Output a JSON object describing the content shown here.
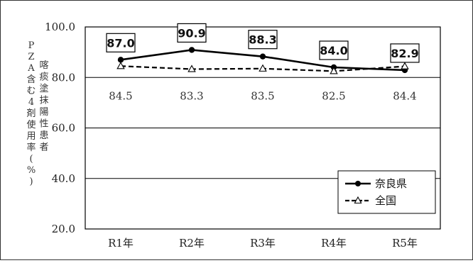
{
  "chart_data": {
    "type": "line",
    "categories": [
      "R1年",
      "R2年",
      "R3年",
      "R4年",
      "R5年"
    ],
    "series": [
      {
        "name": "奈良県",
        "values": [
          87.0,
          90.9,
          88.3,
          84.0,
          82.9
        ],
        "color": "#000000",
        "style": "solid",
        "marker": "filled-circle"
      },
      {
        "name": "全国",
        "values": [
          84.5,
          83.3,
          83.5,
          82.5,
          84.4
        ],
        "color": "#000000",
        "style": "dashed",
        "marker": "open-triangle"
      }
    ],
    "data_labels": {
      "奈良県": [
        "87.0",
        "90.9",
        "88.3",
        "84.0",
        "82.9"
      ],
      "全国": [
        "84.5",
        "83.3",
        "83.5",
        "82.5",
        "84.4"
      ]
    },
    "ylabel_lines": [
      "喀痰塗抹陽性患者",
      "PZA含む4剤使用率(%)"
    ],
    "ylim": [
      20.0,
      100.0
    ],
    "yticks": [
      "20.0",
      "40.0",
      "60.0",
      "80.0",
      "100.0"
    ],
    "ytick_values": [
      20,
      40,
      60,
      80,
      100
    ],
    "grid": true,
    "legend_position": "bottom-right"
  }
}
